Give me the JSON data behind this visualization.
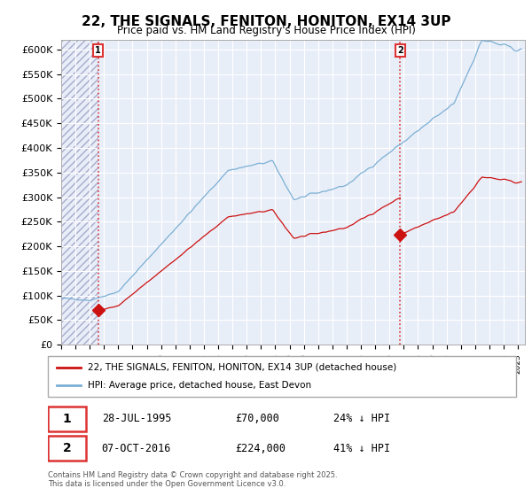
{
  "title": "22, THE SIGNALS, FENITON, HONITON, EX14 3UP",
  "subtitle": "Price paid vs. HM Land Registry's House Price Index (HPI)",
  "ylim": [
    0,
    620000
  ],
  "yticks": [
    0,
    50000,
    100000,
    150000,
    200000,
    250000,
    300000,
    350000,
    400000,
    450000,
    500000,
    550000,
    600000
  ],
  "ytick_labels": [
    "£0",
    "£50K",
    "£100K",
    "£150K",
    "£200K",
    "£250K",
    "£300K",
    "£350K",
    "£400K",
    "£450K",
    "£500K",
    "£550K",
    "£600K"
  ],
  "hpi_color": "#7BAFD4",
  "price_color": "#CC1111",
  "marker_color": "#CC1111",
  "dashed_color": "#DD3333",
  "plot_bg_color": "#E8EEF8",
  "legend_label_price": "22, THE SIGNALS, FENITON, HONITON, EX14 3UP (detached house)",
  "legend_label_hpi": "HPI: Average price, detached house, East Devon",
  "point1_date": "28-JUL-1995",
  "point1_value": 70000,
  "point1_hpi_pct": "24% ↓ HPI",
  "point2_date": "07-OCT-2016",
  "point2_value": 224000,
  "point2_hpi_pct": "41% ↓ HPI",
  "footnote": "Contains HM Land Registry data © Crown copyright and database right 2025.\nThis data is licensed under the Open Government Licence v3.0.",
  "point1_x": 1995.578,
  "point1_y": 70000,
  "point2_x": 2016.753,
  "point2_y": 224000,
  "xlim_start": 1993.0,
  "xlim_end": 2025.5
}
